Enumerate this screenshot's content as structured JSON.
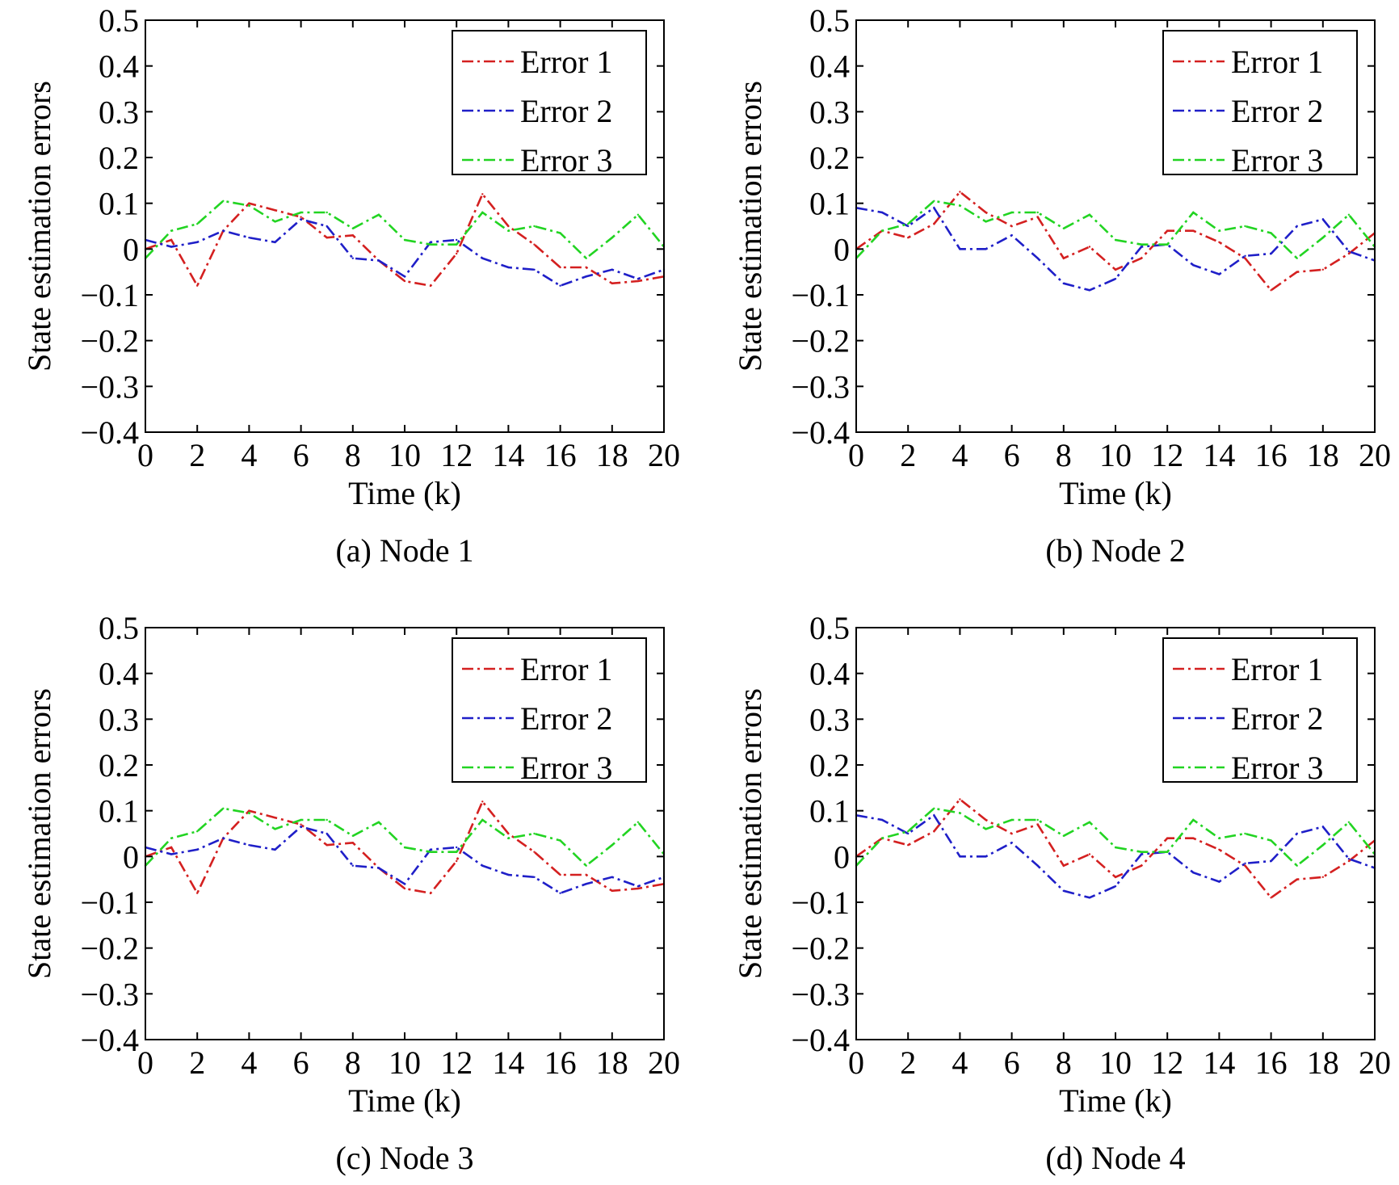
{
  "chart_data": [
    {
      "type": "line",
      "caption": "(a) Node 1",
      "xlabel": "Time (k)",
      "ylabel": "State estimation errors",
      "xlim": [
        0,
        20
      ],
      "ylim": [
        -0.4,
        0.5
      ],
      "xticks": [
        "0",
        "2",
        "4",
        "6",
        "8",
        "10",
        "12",
        "14",
        "16",
        "18",
        "20"
      ],
      "yticks": [
        "−0.4",
        "−0.3",
        "−0.2",
        "−0.1",
        "0",
        "0.1",
        "0.2",
        "0.3",
        "0.4",
        "0.5"
      ],
      "grid": false,
      "legend": "top-right",
      "x": [
        0,
        1,
        2,
        3,
        4,
        5,
        6,
        7,
        8,
        9,
        10,
        11,
        12,
        13,
        14,
        15,
        16,
        17,
        18,
        19,
        20
      ],
      "series": [
        {
          "name": "Error 1",
          "color": "#d42020",
          "values": [
            0.0,
            0.02,
            -0.08,
            0.04,
            0.1,
            0.085,
            0.07,
            0.025,
            0.03,
            -0.025,
            -0.07,
            -0.08,
            -0.01,
            0.12,
            0.05,
            0.01,
            -0.04,
            -0.04,
            -0.075,
            -0.07,
            -0.06
          ]
        },
        {
          "name": "Error 2",
          "color": "#1f1fc8",
          "values": [
            0.02,
            0.005,
            0.015,
            0.04,
            0.025,
            0.015,
            0.065,
            0.05,
            -0.02,
            -0.025,
            -0.06,
            0.015,
            0.02,
            -0.02,
            -0.04,
            -0.045,
            -0.08,
            -0.06,
            -0.045,
            -0.065,
            -0.045
          ]
        },
        {
          "name": "Error 3",
          "color": "#22d422",
          "values": [
            -0.02,
            0.04,
            0.055,
            0.105,
            0.095,
            0.06,
            0.08,
            0.08,
            0.045,
            0.075,
            0.02,
            0.01,
            0.01,
            0.08,
            0.04,
            0.05,
            0.035,
            -0.02,
            0.025,
            0.075,
            0.005
          ]
        }
      ]
    },
    {
      "type": "line",
      "caption": "(b) Node 2",
      "xlabel": "Time (k)",
      "ylabel": "State estimation errors",
      "xlim": [
        0,
        20
      ],
      "ylim": [
        -0.4,
        0.5
      ],
      "xticks": [
        "0",
        "2",
        "4",
        "6",
        "8",
        "10",
        "12",
        "14",
        "16",
        "18",
        "20"
      ],
      "yticks": [
        "−0.4",
        "−0.3",
        "−0.2",
        "−0.1",
        "0",
        "0.1",
        "0.2",
        "0.3",
        "0.4",
        "0.5"
      ],
      "grid": false,
      "legend": "top-right",
      "x": [
        0,
        1,
        2,
        3,
        4,
        5,
        6,
        7,
        8,
        9,
        10,
        11,
        12,
        13,
        14,
        15,
        16,
        17,
        18,
        19,
        20
      ],
      "series": [
        {
          "name": "Error 1",
          "color": "#d42020",
          "values": [
            0.0,
            0.04,
            0.025,
            0.055,
            0.125,
            0.08,
            0.05,
            0.07,
            -0.02,
            0.005,
            -0.045,
            -0.02,
            0.04,
            0.04,
            0.015,
            -0.02,
            -0.09,
            -0.05,
            -0.045,
            -0.01,
            0.035
          ]
        },
        {
          "name": "Error 2",
          "color": "#1f1fc8",
          "values": [
            0.09,
            0.08,
            0.05,
            0.09,
            0.0,
            0.0,
            0.03,
            -0.02,
            -0.075,
            -0.09,
            -0.065,
            0.005,
            0.01,
            -0.035,
            -0.055,
            -0.015,
            -0.01,
            0.05,
            0.065,
            -0.005,
            -0.025
          ]
        },
        {
          "name": "Error 3",
          "color": "#22d422",
          "values": [
            -0.02,
            0.04,
            0.055,
            0.105,
            0.095,
            0.06,
            0.08,
            0.08,
            0.045,
            0.075,
            0.02,
            0.01,
            0.01,
            0.08,
            0.04,
            0.05,
            0.035,
            -0.02,
            0.025,
            0.075,
            0.005
          ]
        }
      ]
    },
    {
      "type": "line",
      "caption": "(c) Node 3",
      "xlabel": "Time (k)",
      "ylabel": "State estimation errors",
      "xlim": [
        0,
        20
      ],
      "ylim": [
        -0.4,
        0.5
      ],
      "xticks": [
        "0",
        "2",
        "4",
        "6",
        "8",
        "10",
        "12",
        "14",
        "16",
        "18",
        "20"
      ],
      "yticks": [
        "−0.4",
        "−0.3",
        "−0.2",
        "−0.1",
        "0",
        "0.1",
        "0.2",
        "0.3",
        "0.4",
        "0.5"
      ],
      "grid": false,
      "legend": "top-right",
      "x": [
        0,
        1,
        2,
        3,
        4,
        5,
        6,
        7,
        8,
        9,
        10,
        11,
        12,
        13,
        14,
        15,
        16,
        17,
        18,
        19,
        20
      ],
      "series": [
        {
          "name": "Error 1",
          "color": "#d42020",
          "values": [
            0.0,
            0.02,
            -0.08,
            0.04,
            0.1,
            0.085,
            0.07,
            0.025,
            0.03,
            -0.025,
            -0.07,
            -0.08,
            -0.01,
            0.12,
            0.05,
            0.01,
            -0.04,
            -0.04,
            -0.075,
            -0.07,
            -0.06
          ]
        },
        {
          "name": "Error 2",
          "color": "#1f1fc8",
          "values": [
            0.02,
            0.005,
            0.015,
            0.04,
            0.025,
            0.015,
            0.065,
            0.05,
            -0.02,
            -0.025,
            -0.06,
            0.015,
            0.02,
            -0.02,
            -0.04,
            -0.045,
            -0.08,
            -0.06,
            -0.045,
            -0.065,
            -0.045
          ]
        },
        {
          "name": "Error 3",
          "color": "#22d422",
          "values": [
            -0.02,
            0.04,
            0.055,
            0.105,
            0.095,
            0.06,
            0.08,
            0.08,
            0.045,
            0.075,
            0.02,
            0.01,
            0.01,
            0.08,
            0.04,
            0.05,
            0.035,
            -0.02,
            0.025,
            0.075,
            0.005
          ]
        }
      ]
    },
    {
      "type": "line",
      "caption": "(d) Node 4",
      "xlabel": "Time (k)",
      "ylabel": "State estimation errors",
      "xlim": [
        0,
        20
      ],
      "ylim": [
        -0.4,
        0.5
      ],
      "xticks": [
        "0",
        "2",
        "4",
        "6",
        "8",
        "10",
        "12",
        "14",
        "16",
        "18",
        "20"
      ],
      "yticks": [
        "−0.4",
        "−0.3",
        "−0.2",
        "−0.1",
        "0",
        "0.1",
        "0.2",
        "0.3",
        "0.4",
        "0.5"
      ],
      "grid": false,
      "legend": "top-right",
      "x": [
        0,
        1,
        2,
        3,
        4,
        5,
        6,
        7,
        8,
        9,
        10,
        11,
        12,
        13,
        14,
        15,
        16,
        17,
        18,
        19,
        20
      ],
      "series": [
        {
          "name": "Error 1",
          "color": "#d42020",
          "values": [
            0.0,
            0.04,
            0.025,
            0.055,
            0.125,
            0.08,
            0.05,
            0.07,
            -0.02,
            0.005,
            -0.045,
            -0.02,
            0.04,
            0.04,
            0.015,
            -0.02,
            -0.09,
            -0.05,
            -0.045,
            -0.01,
            0.035
          ]
        },
        {
          "name": "Error 2",
          "color": "#1f1fc8",
          "values": [
            0.09,
            0.08,
            0.05,
            0.09,
            0.0,
            0.0,
            0.03,
            -0.02,
            -0.075,
            -0.09,
            -0.065,
            0.005,
            0.01,
            -0.035,
            -0.055,
            -0.015,
            -0.01,
            0.05,
            0.065,
            -0.005,
            -0.025
          ]
        },
        {
          "name": "Error 3",
          "color": "#22d422",
          "values": [
            -0.02,
            0.04,
            0.055,
            0.105,
            0.095,
            0.06,
            0.08,
            0.08,
            0.045,
            0.075,
            0.02,
            0.01,
            0.01,
            0.08,
            0.04,
            0.05,
            0.035,
            -0.02,
            0.025,
            0.075,
            0.005
          ]
        }
      ]
    }
  ]
}
